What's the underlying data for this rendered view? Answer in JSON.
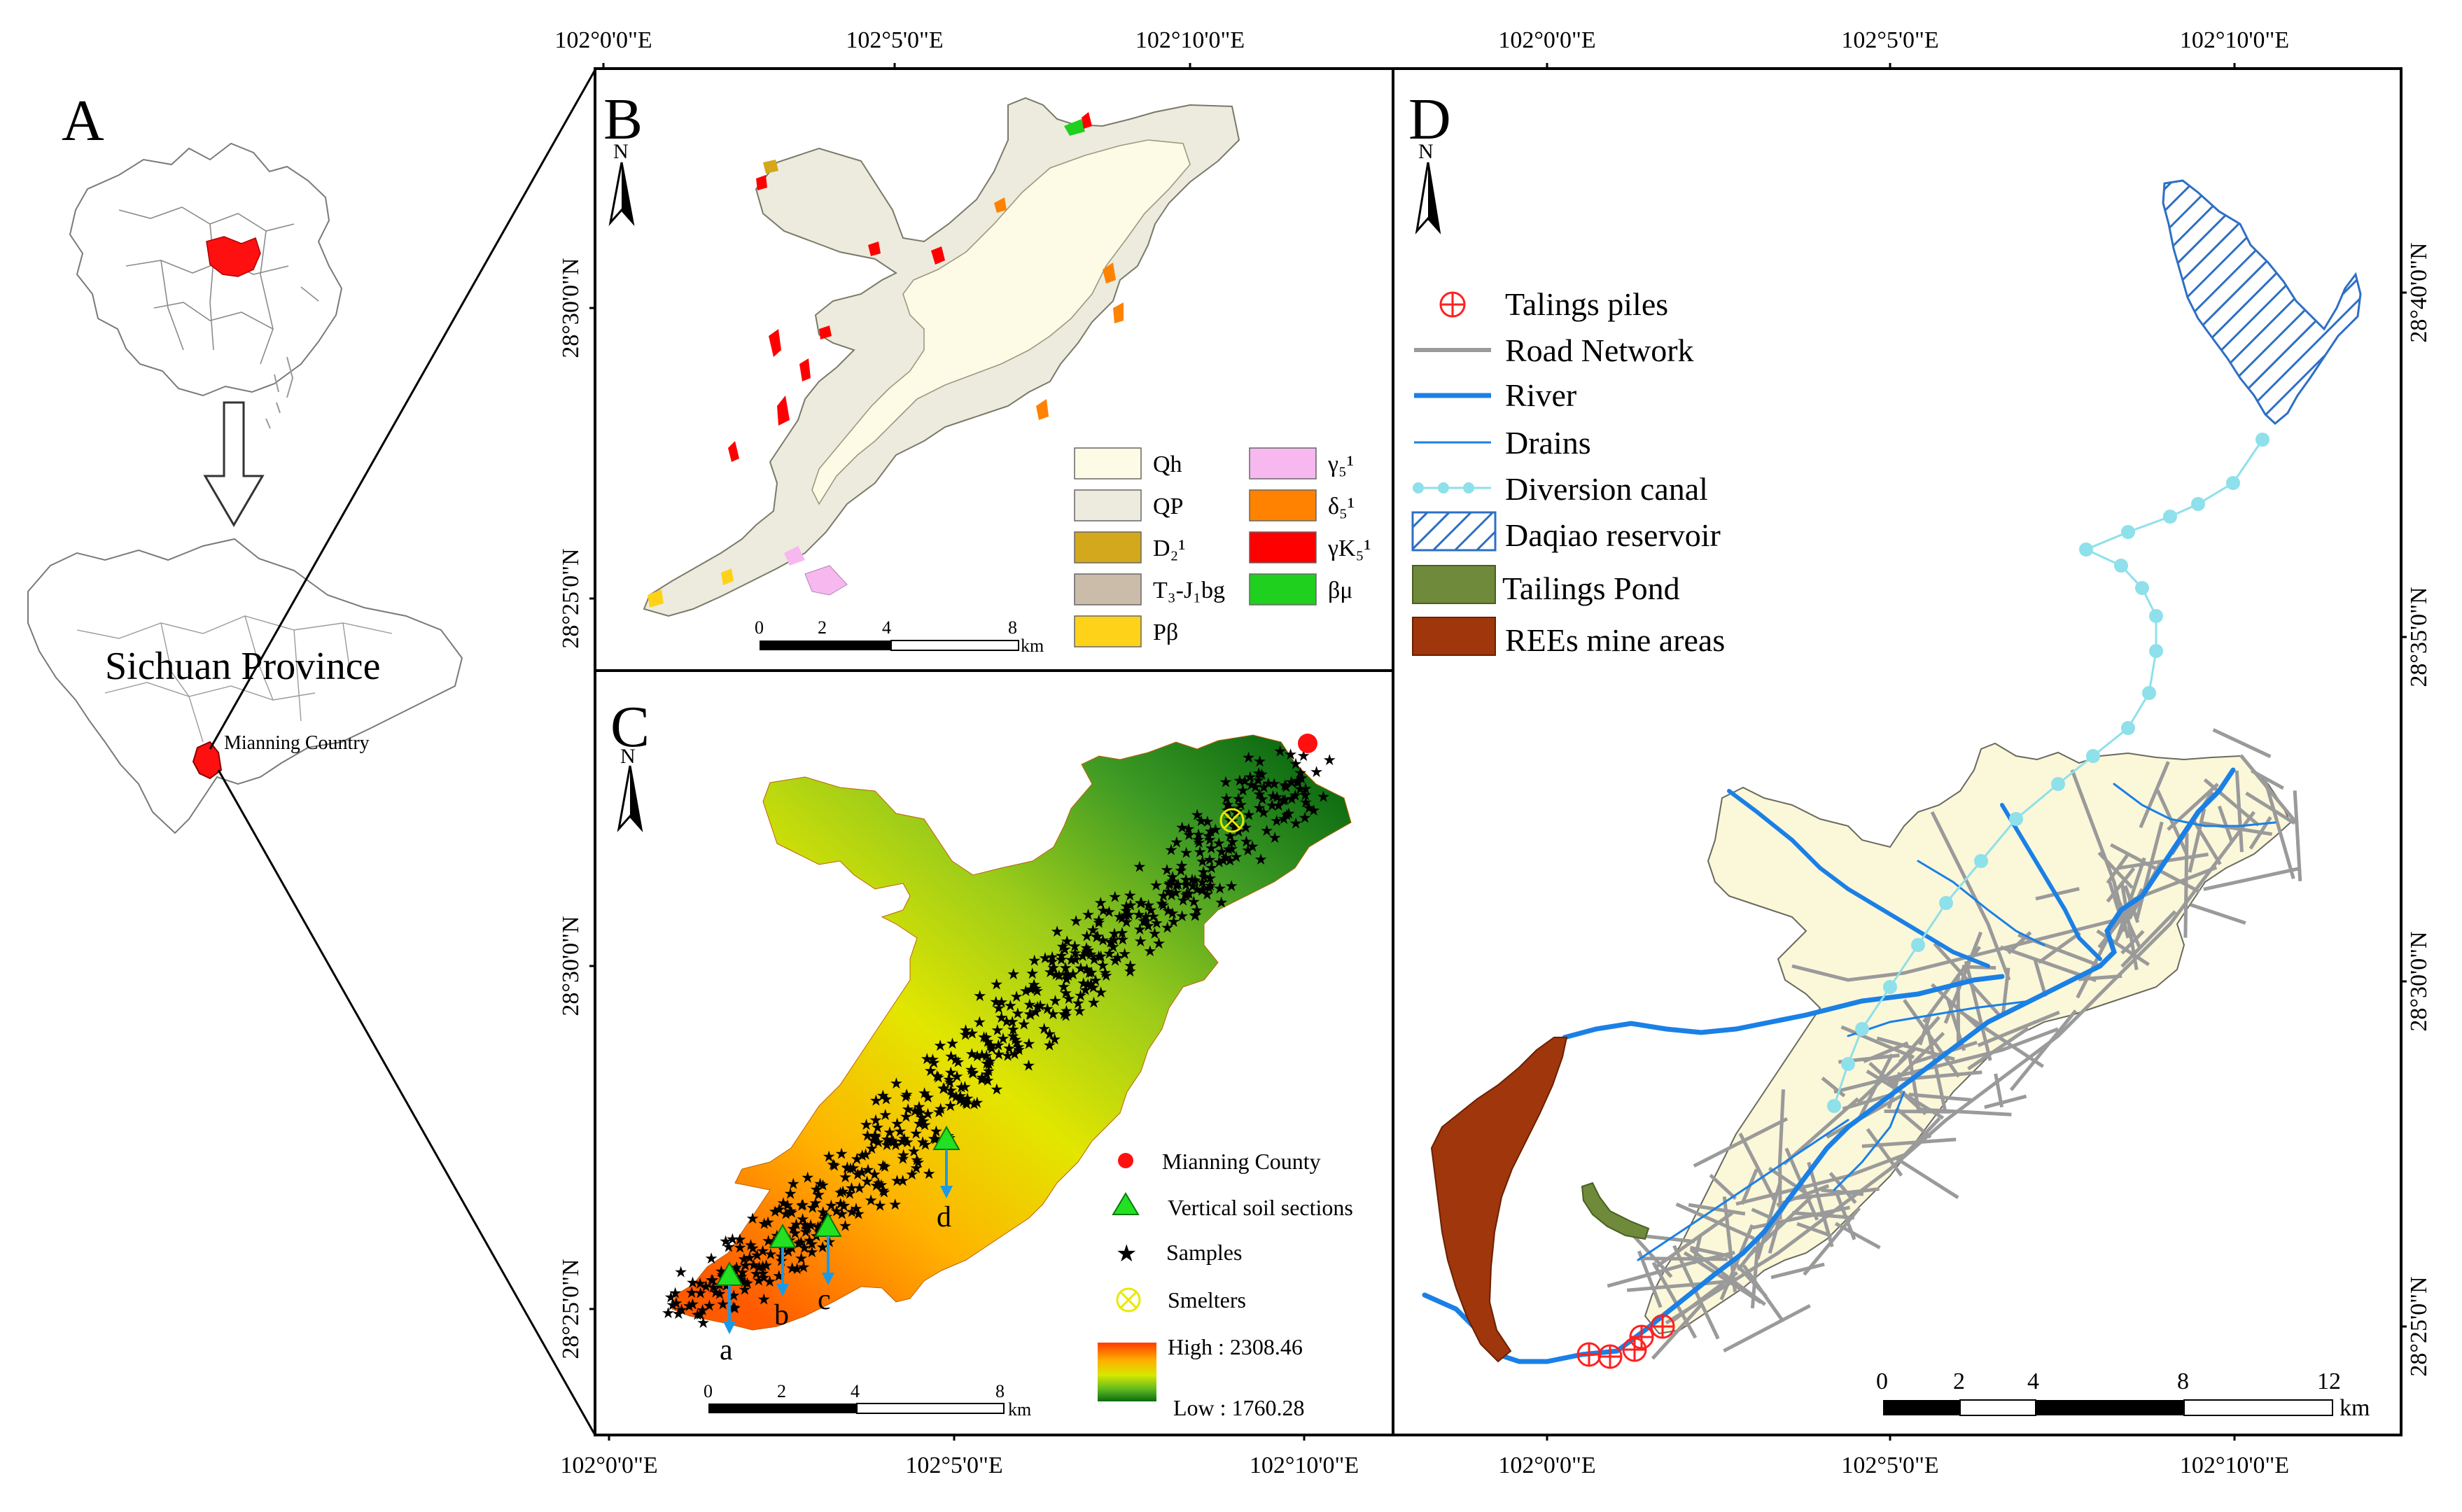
{
  "panels": {
    "a": {
      "letter": "A",
      "province_label": "Sichuan Province",
      "county_label": "Mianning Country"
    },
    "b": {
      "letter": "B"
    },
    "c": {
      "letter": "C"
    },
    "d": {
      "letter": "D"
    }
  },
  "north_label": "N",
  "top_ticks_bc": [
    "102°0'0\"E",
    "102°5'0\"E",
    "102°10'0\"E"
  ],
  "bottom_ticks_bc": [
    "102°0'0\"E",
    "102°5'0\"E",
    "102°10'0\"E"
  ],
  "top_ticks_d": [
    "102°0'0\"E",
    "102°5'0\"E",
    "102°10'0\"E"
  ],
  "bottom_ticks_d": [
    "102°0'0\"E",
    "102°5'0\"E",
    "102°10'0\"E"
  ],
  "left_ticks_b": [
    "28°30'0\"N",
    "28°25'0\"N"
  ],
  "left_ticks_c": [
    "28°30'0\"N",
    "28°25'0\"N"
  ],
  "right_ticks_d": [
    "28°40'0\"N",
    "28°35'0\"N",
    "28°30'0\"N",
    "28°25'0\"N"
  ],
  "legend_b": {
    "items": [
      {
        "label": "Qh",
        "color": "#fdfbe6"
      },
      {
        "label": "QP",
        "color": "#ecebdd"
      },
      {
        "label": "D₂¹",
        "color": "#d4a81c"
      },
      {
        "label": "T₃-J₁bg",
        "color": "#cbbca9"
      },
      {
        "label": "Pβ",
        "color": "#ffd21a"
      },
      {
        "label": "γ₅¹",
        "color": "#f7b8f0"
      },
      {
        "label": "δ₅¹",
        "color": "#ff8200"
      },
      {
        "label": "γK₅¹",
        "color": "#ff0000"
      },
      {
        "label": "βμ",
        "color": "#1fd01f"
      }
    ]
  },
  "scale_b": {
    "ticks": [
      "0",
      "2",
      "4",
      "8"
    ],
    "unit": "km"
  },
  "legend_c": {
    "county": "Mianning County",
    "sections": "Vertical soil sections",
    "samples": "Samples",
    "smelters": "Smelters",
    "high": "High : 2308.46",
    "low": "Low : 1760.28"
  },
  "elevation": {
    "high": 2308.46,
    "low": 1760.28
  },
  "section_labels": [
    "a",
    "b",
    "c",
    "d"
  ],
  "scale_c": {
    "ticks": [
      "0",
      "2",
      "4",
      "8"
    ],
    "unit": "km"
  },
  "legend_d": {
    "items": [
      {
        "label": "Talings piles",
        "symbol": "circle-cross-icon"
      },
      {
        "label": "Road Network",
        "symbol": "grey-line"
      },
      {
        "label": "River",
        "symbol": "blue-thick-line"
      },
      {
        "label": "Drains",
        "symbol": "blue-thin-line"
      },
      {
        "label": "Diversion canal",
        "symbol": "cyan-dotted-line"
      },
      {
        "label": "Daqiao reservoir",
        "symbol": "hatched-box"
      },
      {
        "label": "Tailings Pond",
        "symbol": "green-box"
      },
      {
        "label": "REEs mine areas",
        "symbol": "brown-box"
      }
    ]
  },
  "scale_d": {
    "ticks": [
      "0",
      "2",
      "4",
      "8",
      "12"
    ],
    "unit": "km"
  },
  "colors": {
    "tailings_piles": "#ff2020",
    "road": "#9a9a9a",
    "river": "#1a80e6",
    "diversion_canal": "#8ee0ea",
    "reservoir_hatch": "#2e6fc4",
    "tailings_pond": "#6f8a3a",
    "ree_mine": "#a0360b",
    "area_fill": "#fbf7d9",
    "china_red": "#ff1010"
  }
}
